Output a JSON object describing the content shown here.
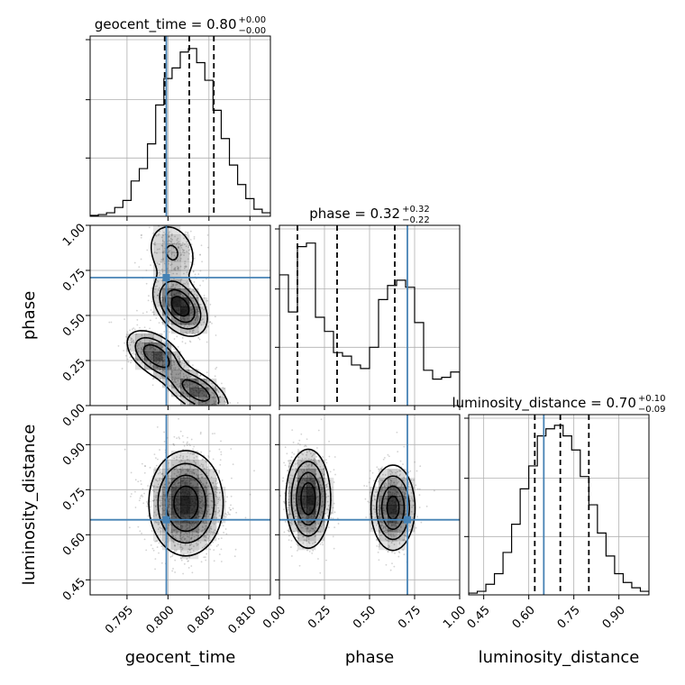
{
  "chart_data": {
    "type": "corner",
    "parameters": [
      {
        "name": "geocent_time",
        "range": [
          0.7905,
          0.8125
        ],
        "ticks": [
          0.795,
          0.8,
          0.805,
          0.81
        ],
        "tick_labels": [
          "0.795",
          "0.800",
          "0.805",
          "0.810"
        ],
        "truth": 0.7998,
        "quantiles": [
          0.7996,
          0.8026,
          0.8056
        ],
        "title": {
          "label": "geocent_time = 0.80",
          "upper": "+0.00",
          "lower": "−0.00"
        },
        "hist": [
          0.005,
          0.01,
          0.02,
          0.05,
          0.09,
          0.2,
          0.27,
          0.41,
          0.63,
          0.78,
          0.84,
          0.93,
          0.95,
          0.87,
          0.77,
          0.6,
          0.44,
          0.29,
          0.18,
          0.1,
          0.04,
          0.02
        ]
      },
      {
        "name": "phase",
        "range": [
          0.0,
          1.0
        ],
        "ticks": [
          0.0,
          0.25,
          0.5,
          0.75,
          1.0
        ],
        "tick_labels": [
          "0.00",
          "0.25",
          "0.50",
          "0.75",
          "1.00"
        ],
        "truth": 0.71,
        "quantiles": [
          0.1,
          0.32,
          0.64
        ],
        "title": {
          "label": "phase = 0.32",
          "upper": "+0.32",
          "lower": "−0.22"
        },
        "hist": [
          0.74,
          0.53,
          0.9,
          0.92,
          0.5,
          0.42,
          0.3,
          0.28,
          0.23,
          0.21,
          0.33,
          0.6,
          0.68,
          0.71,
          0.67,
          0.47,
          0.2,
          0.15,
          0.16,
          0.19
        ]
      },
      {
        "name": "luminosity_distance",
        "range": [
          0.4,
          1.0
        ],
        "ticks": [
          0.45,
          0.6,
          0.75,
          0.9
        ],
        "tick_labels": [
          "0.45",
          "0.60",
          "0.75",
          "0.90"
        ],
        "truth": 0.65,
        "quantiles": [
          0.62,
          0.705,
          0.8
        ],
        "title": {
          "label": "luminosity_distance = 0.70",
          "upper": "+0.10",
          "lower": "−0.09"
        },
        "hist": [
          0.01,
          0.02,
          0.06,
          0.12,
          0.24,
          0.4,
          0.6,
          0.73,
          0.9,
          0.94,
          0.96,
          0.9,
          0.82,
          0.67,
          0.51,
          0.35,
          0.22,
          0.12,
          0.07,
          0.04,
          0.02
        ]
      }
    ],
    "contour_levels": [
      "0.5 sigma",
      "1 sigma",
      "1.5 sigma",
      "2 sigma"
    ],
    "colors": {
      "truth": "#4682b4",
      "hist": "#000000",
      "grid": "#b0b0b0",
      "scatter": "#808080",
      "density": "#000000"
    }
  }
}
